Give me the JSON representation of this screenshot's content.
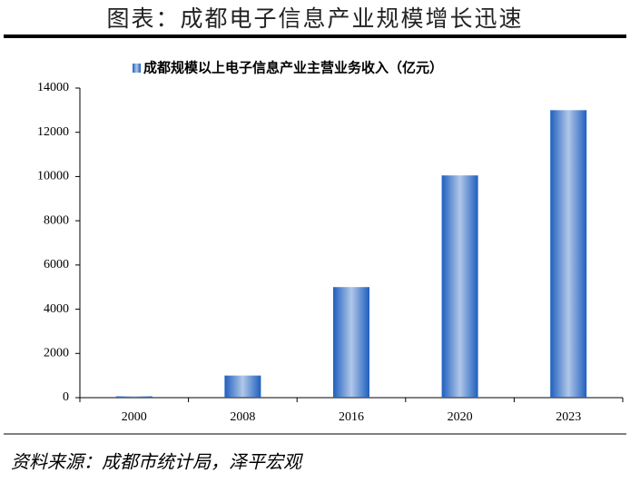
{
  "chart_data": {
    "type": "bar",
    "title": "图表：成都电子信息产业规模增长迅速",
    "source": "资料来源：成都市统计局，泽平宏观",
    "categories": [
      "2000",
      "2008",
      "2016",
      "2020",
      "2023"
    ],
    "series": [
      {
        "name": "成都规模以上电子信息产业主营业务收入（亿元）",
        "color": "#1f5fbf",
        "values": [
          60,
          1000,
          5000,
          10050,
          13000
        ]
      }
    ],
    "ylim": [
      0,
      14000
    ],
    "yticks": [
      0,
      2000,
      4000,
      6000,
      8000,
      10000,
      12000,
      14000
    ],
    "grid": false,
    "legend": "top"
  }
}
